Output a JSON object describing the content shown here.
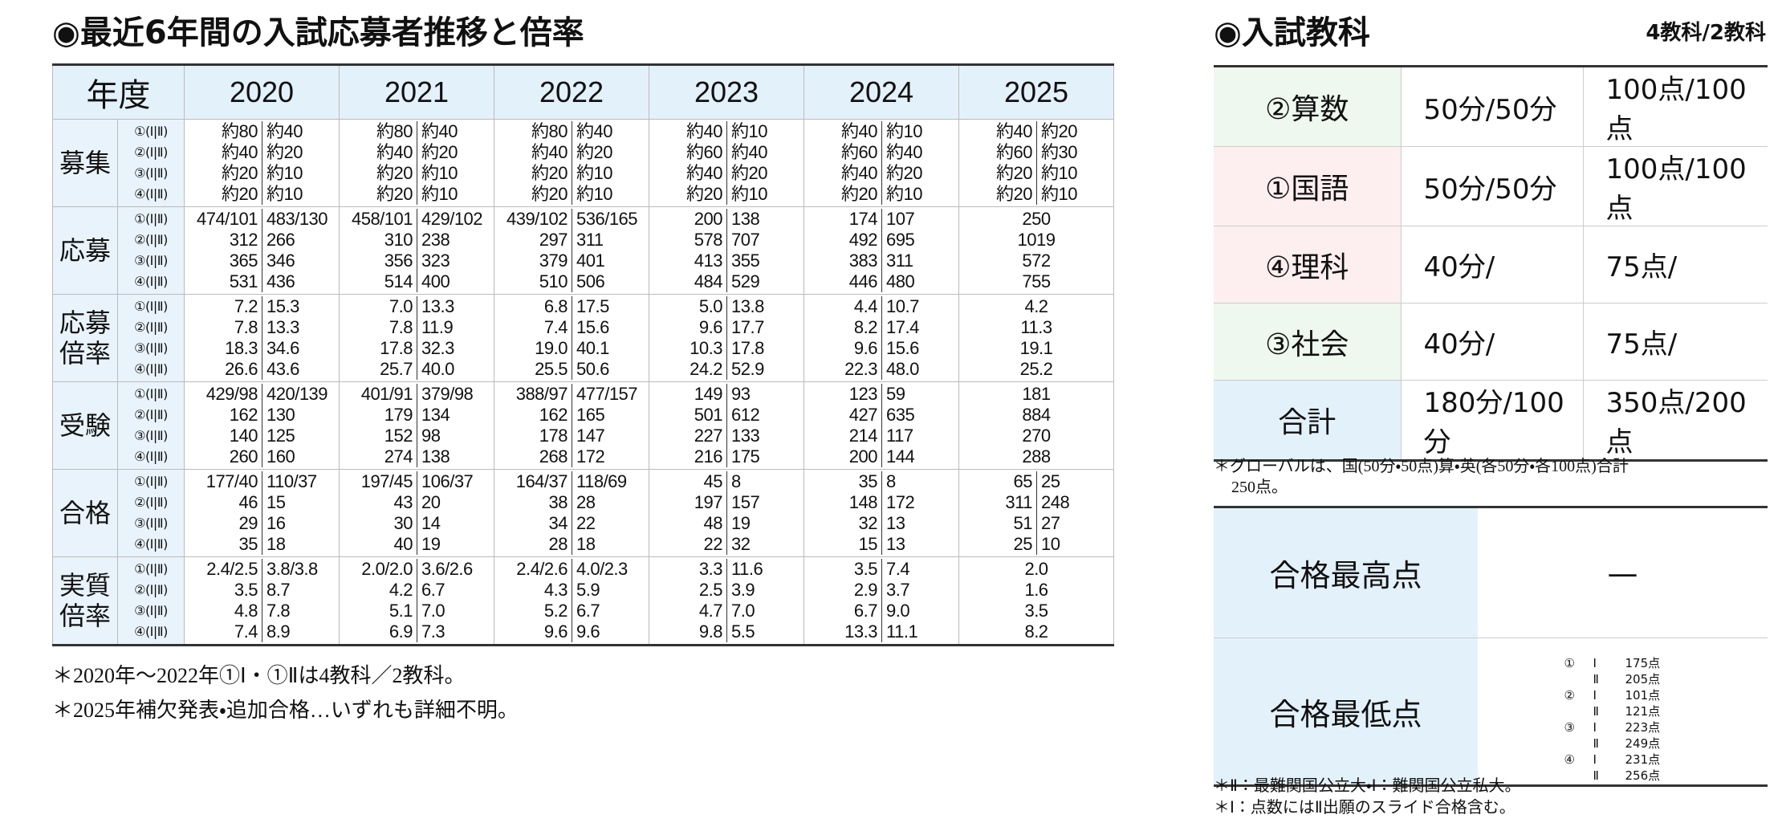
{
  "left": {
    "title": "◉最近6年間の入試応募者推移と倍率",
    "table": {
      "corner": "年度",
      "years": [
        "2020",
        "2021",
        "2022",
        "2023",
        "2024",
        "2025"
      ],
      "sub_labels": [
        "①(Ⅰ|Ⅱ)",
        "②(Ⅰ|Ⅱ)",
        "③(Ⅰ|Ⅱ)",
        "④(Ⅰ|Ⅱ)"
      ],
      "groups": [
        {
          "label": "募集",
          "cells": [
            [
              [
                "約80",
                "約40"
              ],
              [
                "約40",
                "約20"
              ],
              [
                "約20",
                "約10"
              ],
              [
                "約20",
                "約10"
              ]
            ],
            [
              [
                "約80",
                "約40"
              ],
              [
                "約40",
                "約20"
              ],
              [
                "約20",
                "約10"
              ],
              [
                "約20",
                "約10"
              ]
            ],
            [
              [
                "約80",
                "約40"
              ],
              [
                "約40",
                "約20"
              ],
              [
                "約20",
                "約10"
              ],
              [
                "約20",
                "約10"
              ]
            ],
            [
              [
                "約40",
                "約10"
              ],
              [
                "約60",
                "約40"
              ],
              [
                "約40",
                "約20"
              ],
              [
                "約20",
                "約10"
              ]
            ],
            [
              [
                "約40",
                "約10"
              ],
              [
                "約60",
                "約40"
              ],
              [
                "約40",
                "約20"
              ],
              [
                "約20",
                "約10"
              ]
            ],
            [
              [
                "約40",
                "約20"
              ],
              [
                "約60",
                "約30"
              ],
              [
                "約20",
                "約10"
              ],
              [
                "約20",
                "約10"
              ]
            ]
          ]
        },
        {
          "label": "応募",
          "cells": [
            [
              [
                "474/101",
                "483/130"
              ],
              [
                "312",
                "266"
              ],
              [
                "365",
                "346"
              ],
              [
                "531",
                "436"
              ]
            ],
            [
              [
                "458/101",
                "429/102"
              ],
              [
                "310",
                "238"
              ],
              [
                "356",
                "323"
              ],
              [
                "514",
                "400"
              ]
            ],
            [
              [
                "439/102",
                "536/165"
              ],
              [
                "297",
                "311"
              ],
              [
                "379",
                "401"
              ],
              [
                "510",
                "506"
              ]
            ],
            [
              [
                "200",
                "138"
              ],
              [
                "578",
                "707"
              ],
              [
                "413",
                "355"
              ],
              [
                "484",
                "529"
              ]
            ],
            [
              [
                "174",
                "107"
              ],
              [
                "492",
                "695"
              ],
              [
                "383",
                "311"
              ],
              [
                "446",
                "480"
              ]
            ],
            [
              [
                "250"
              ],
              [
                "1019"
              ],
              [
                "572"
              ],
              [
                "755"
              ]
            ]
          ]
        },
        {
          "label": "応募倍率",
          "cells": [
            [
              [
                "7.2",
                "15.3"
              ],
              [
                "7.8",
                "13.3"
              ],
              [
                "18.3",
                "34.6"
              ],
              [
                "26.6",
                "43.6"
              ]
            ],
            [
              [
                "7.0",
                "13.3"
              ],
              [
                "7.8",
                "11.9"
              ],
              [
                "17.8",
                "32.3"
              ],
              [
                "25.7",
                "40.0"
              ]
            ],
            [
              [
                "6.8",
                "17.5"
              ],
              [
                "7.4",
                "15.6"
              ],
              [
                "19.0",
                "40.1"
              ],
              [
                "25.5",
                "50.6"
              ]
            ],
            [
              [
                "5.0",
                "13.8"
              ],
              [
                "9.6",
                "17.7"
              ],
              [
                "10.3",
                "17.8"
              ],
              [
                "24.2",
                "52.9"
              ]
            ],
            [
              [
                "4.4",
                "10.7"
              ],
              [
                "8.2",
                "17.4"
              ],
              [
                "9.6",
                "15.6"
              ],
              [
                "22.3",
                "48.0"
              ]
            ],
            [
              [
                "4.2"
              ],
              [
                "11.3"
              ],
              [
                "19.1"
              ],
              [
                "25.2"
              ]
            ]
          ]
        },
        {
          "label": "受験",
          "cells": [
            [
              [
                "429/98",
                "420/139"
              ],
              [
                "162",
                "130"
              ],
              [
                "140",
                "125"
              ],
              [
                "260",
                "160"
              ]
            ],
            [
              [
                "401/91",
                "379/98"
              ],
              [
                "179",
                "134"
              ],
              [
                "152",
                "98"
              ],
              [
                "274",
                "138"
              ]
            ],
            [
              [
                "388/97",
                "477/157"
              ],
              [
                "162",
                "165"
              ],
              [
                "178",
                "147"
              ],
              [
                "268",
                "172"
              ]
            ],
            [
              [
                "149",
                "93"
              ],
              [
                "501",
                "612"
              ],
              [
                "227",
                "133"
              ],
              [
                "216",
                "175"
              ]
            ],
            [
              [
                "123",
                "59"
              ],
              [
                "427",
                "635"
              ],
              [
                "214",
                "117"
              ],
              [
                "200",
                "144"
              ]
            ],
            [
              [
                "181"
              ],
              [
                "884"
              ],
              [
                "270"
              ],
              [
                "288"
              ]
            ]
          ]
        },
        {
          "label": "合格",
          "cells": [
            [
              [
                "177/40",
                "110/37"
              ],
              [
                "46",
                "15"
              ],
              [
                "29",
                "16"
              ],
              [
                "35",
                "18"
              ]
            ],
            [
              [
                "197/45",
                "106/37"
              ],
              [
                "43",
                "20"
              ],
              [
                "30",
                "14"
              ],
              [
                "40",
                "19"
              ]
            ],
            [
              [
                "164/37",
                "118/69"
              ],
              [
                "38",
                "28"
              ],
              [
                "34",
                "22"
              ],
              [
                "28",
                "18"
              ]
            ],
            [
              [
                "45",
                "8"
              ],
              [
                "197",
                "157"
              ],
              [
                "48",
                "19"
              ],
              [
                "22",
                "32"
              ]
            ],
            [
              [
                "35",
                "8"
              ],
              [
                "148",
                "172"
              ],
              [
                "32",
                "13"
              ],
              [
                "15",
                "13"
              ]
            ],
            [
              [
                "65",
                "25"
              ],
              [
                "311",
                "248"
              ],
              [
                "51",
                "27"
              ],
              [
                "25",
                "10"
              ]
            ]
          ]
        },
        {
          "label": "実質倍率",
          "cells": [
            [
              [
                "2.4/2.5",
                "3.8/3.8"
              ],
              [
                "3.5",
                "8.7"
              ],
              [
                "4.8",
                "7.8"
              ],
              [
                "7.4",
                "8.9"
              ]
            ],
            [
              [
                "2.0/2.0",
                "3.6/2.6"
              ],
              [
                "4.2",
                "6.7"
              ],
              [
                "5.1",
                "7.0"
              ],
              [
                "6.9",
                "7.3"
              ]
            ],
            [
              [
                "2.4/2.6",
                "4.0/2.3"
              ],
              [
                "4.3",
                "5.9"
              ],
              [
                "5.2",
                "6.7"
              ],
              [
                "9.6",
                "9.6"
              ]
            ],
            [
              [
                "3.3",
                "11.6"
              ],
              [
                "2.5",
                "3.9"
              ],
              [
                "4.7",
                "7.0"
              ],
              [
                "9.8",
                "5.5"
              ]
            ],
            [
              [
                "3.5",
                "7.4"
              ],
              [
                "2.9",
                "3.7"
              ],
              [
                "6.7",
                "9.0"
              ],
              [
                "13.3",
                "11.1"
              ]
            ],
            [
              [
                "2.0"
              ],
              [
                "1.6"
              ],
              [
                "3.5"
              ],
              [
                "8.2"
              ]
            ]
          ]
        }
      ]
    },
    "notes": [
      "＊2020年～2022年①Ⅰ・①Ⅱは4教科／2教科。",
      "＊2025年補欠発表・追加合格…いずれも詳細不明。"
    ]
  },
  "right": {
    "title": "◉入試教科",
    "subtitle": "4教科/2教科",
    "subjects": [
      [
        "②算数",
        "50分/50分",
        "100点/100点"
      ],
      [
        "①国語",
        "50分/50分",
        "100点/100点"
      ],
      [
        "④理科",
        "40分/",
        "75点/"
      ],
      [
        "③社会",
        "40分/",
        "75点/"
      ],
      [
        "合計",
        "180分/100分",
        "350点/200点"
      ]
    ],
    "subject_note": [
      "＊グローバルは、国(50分・50点)算・英(各50分・各100点)合計",
      "250点。"
    ],
    "max_label": "合格最高点",
    "max_value": "—",
    "min_label": "合格最低点",
    "min_scores": [
      {
        "num": "①",
        "items": [
          [
            "Ⅰ",
            "175点"
          ],
          [
            "Ⅱ",
            "205点"
          ]
        ]
      },
      {
        "num": "②",
        "items": [
          [
            "Ⅰ",
            "101点"
          ],
          [
            "Ⅱ",
            "121点"
          ]
        ]
      },
      {
        "num": "③",
        "items": [
          [
            "Ⅰ",
            "223点"
          ],
          [
            "Ⅱ",
            "249点"
          ]
        ]
      },
      {
        "num": "④",
        "items": [
          [
            "Ⅰ",
            "231点"
          ],
          [
            "Ⅱ",
            "256点"
          ]
        ]
      }
    ],
    "notes": [
      "＊Ⅱ：最難関国公立大・Ⅰ：難関国公立私大。",
      "＊Ⅰ：点数にはⅡ出願のスライド合格含む。"
    ]
  }
}
